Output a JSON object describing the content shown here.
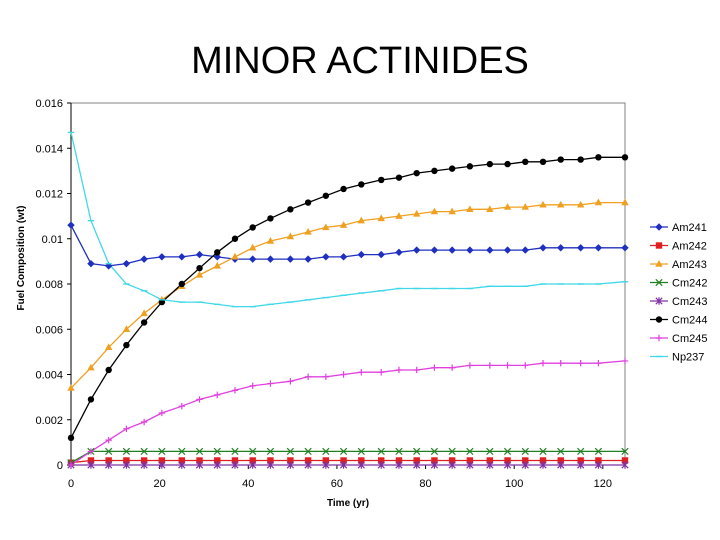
{
  "slide_title": "MINOR ACTINIDES",
  "chart_data": {
    "type": "line",
    "xlabel": "Time (yr)",
    "ylabel": "Fuel Composition (wt)",
    "xlim": [
      0,
      125
    ],
    "ylim": [
      0,
      0.016
    ],
    "xticks": [
      "0",
      "20",
      "40",
      "60",
      "80",
      "100",
      "120"
    ],
    "yticks": [
      "0",
      "0.002",
      "0.004",
      "0.006",
      "0.008",
      "0.01",
      "0.012",
      "0.014",
      "0.016"
    ],
    "grid": false,
    "legend_position": "right",
    "x": [
      0,
      4.5,
      8.5,
      12.5,
      16.5,
      20.5,
      25,
      29,
      33,
      37,
      41,
      45,
      49.5,
      53.5,
      57.5,
      61.5,
      65.5,
      70,
      74,
      78,
      82,
      86,
      90,
      94.5,
      98.5,
      102.5,
      106.5,
      110.5,
      115,
      119,
      125
    ],
    "series": [
      {
        "name": "Am241",
        "color": "#1f2fbf",
        "marker": "diamond",
        "values": [
          0.0106,
          0.0089,
          0.0088,
          0.0089,
          0.0091,
          0.0092,
          0.0092,
          0.0093,
          0.0092,
          0.0091,
          0.0091,
          0.0091,
          0.0091,
          0.0091,
          0.0092,
          0.0092,
          0.0093,
          0.0093,
          0.0094,
          0.0095,
          0.0095,
          0.0095,
          0.0095,
          0.0095,
          0.0095,
          0.0095,
          0.0096,
          0.0096,
          0.0096,
          0.0096,
          0.0096
        ]
      },
      {
        "name": "Am242",
        "color": "#e02020",
        "marker": "square",
        "values": [
          0.0001,
          0.0002,
          0.0002,
          0.0002,
          0.0002,
          0.0002,
          0.0002,
          0.0002,
          0.0002,
          0.0002,
          0.0002,
          0.0002,
          0.0002,
          0.0002,
          0.0002,
          0.0002,
          0.0002,
          0.0002,
          0.0002,
          0.0002,
          0.0002,
          0.0002,
          0.0002,
          0.0002,
          0.0002,
          0.0002,
          0.0002,
          0.0002,
          0.0002,
          0.0002,
          0.0002
        ]
      },
      {
        "name": "Am243",
        "color": "#f0a020",
        "marker": "triangle",
        "values": [
          0.0034,
          0.0043,
          0.0052,
          0.006,
          0.0067,
          0.0073,
          0.0079,
          0.0084,
          0.0088,
          0.0092,
          0.0096,
          0.0099,
          0.0101,
          0.0103,
          0.0105,
          0.0106,
          0.0108,
          0.0109,
          0.011,
          0.0111,
          0.0112,
          0.0112,
          0.0113,
          0.0113,
          0.0114,
          0.0114,
          0.0115,
          0.0115,
          0.0115,
          0.0116,
          0.0116
        ]
      },
      {
        "name": "Cm242",
        "color": "#208020",
        "marker": "x",
        "values": [
          0.0001,
          0.0006,
          0.0006,
          0.0006,
          0.0006,
          0.0006,
          0.0006,
          0.0006,
          0.0006,
          0.0006,
          0.0006,
          0.0006,
          0.0006,
          0.0006,
          0.0006,
          0.0006,
          0.0006,
          0.0006,
          0.0006,
          0.0006,
          0.0006,
          0.0006,
          0.0006,
          0.0006,
          0.0006,
          0.0006,
          0.0006,
          0.0006,
          0.0006,
          0.0006,
          0.0006
        ]
      },
      {
        "name": "Cm243",
        "color": "#8030a0",
        "marker": "star",
        "values": [
          0.0,
          0.0,
          0.0,
          0.0,
          0.0,
          0.0,
          0.0,
          0.0,
          0.0,
          0.0,
          0.0,
          0.0,
          0.0,
          0.0,
          0.0,
          0.0,
          0.0,
          0.0,
          0.0,
          0.0,
          0.0,
          0.0,
          0.0,
          0.0,
          0.0,
          0.0,
          0.0,
          0.0,
          0.0,
          0.0,
          0.0
        ]
      },
      {
        "name": "Cm244",
        "color": "#000000",
        "marker": "circle",
        "values": [
          0.0012,
          0.0029,
          0.0042,
          0.0053,
          0.0063,
          0.0072,
          0.008,
          0.0087,
          0.0094,
          0.01,
          0.0105,
          0.0109,
          0.0113,
          0.0116,
          0.0119,
          0.0122,
          0.0124,
          0.0126,
          0.0127,
          0.0129,
          0.013,
          0.0131,
          0.0132,
          0.0133,
          0.0133,
          0.0134,
          0.0134,
          0.0135,
          0.0135,
          0.0136,
          0.0136
        ]
      },
      {
        "name": "Cm245",
        "color": "#e040e0",
        "marker": "plus",
        "values": [
          0.0,
          0.0006,
          0.0011,
          0.0016,
          0.0019,
          0.0023,
          0.0026,
          0.0029,
          0.0031,
          0.0033,
          0.0035,
          0.0036,
          0.0037,
          0.0039,
          0.0039,
          0.004,
          0.0041,
          0.0041,
          0.0042,
          0.0042,
          0.0043,
          0.0043,
          0.0044,
          0.0044,
          0.0044,
          0.0044,
          0.0045,
          0.0045,
          0.0045,
          0.0045,
          0.0046
        ]
      },
      {
        "name": "Np237",
        "color": "#40d8e8",
        "marker": "bar",
        "values": [
          0.0147,
          0.0108,
          0.0089,
          0.008,
          0.0077,
          0.0073,
          0.0072,
          0.0072,
          0.0071,
          0.007,
          0.007,
          0.0071,
          0.0072,
          0.0073,
          0.0074,
          0.0075,
          0.0076,
          0.0077,
          0.0078,
          0.0078,
          0.0078,
          0.0078,
          0.0078,
          0.0079,
          0.0079,
          0.0079,
          0.008,
          0.008,
          0.008,
          0.008,
          0.0081
        ]
      }
    ]
  }
}
